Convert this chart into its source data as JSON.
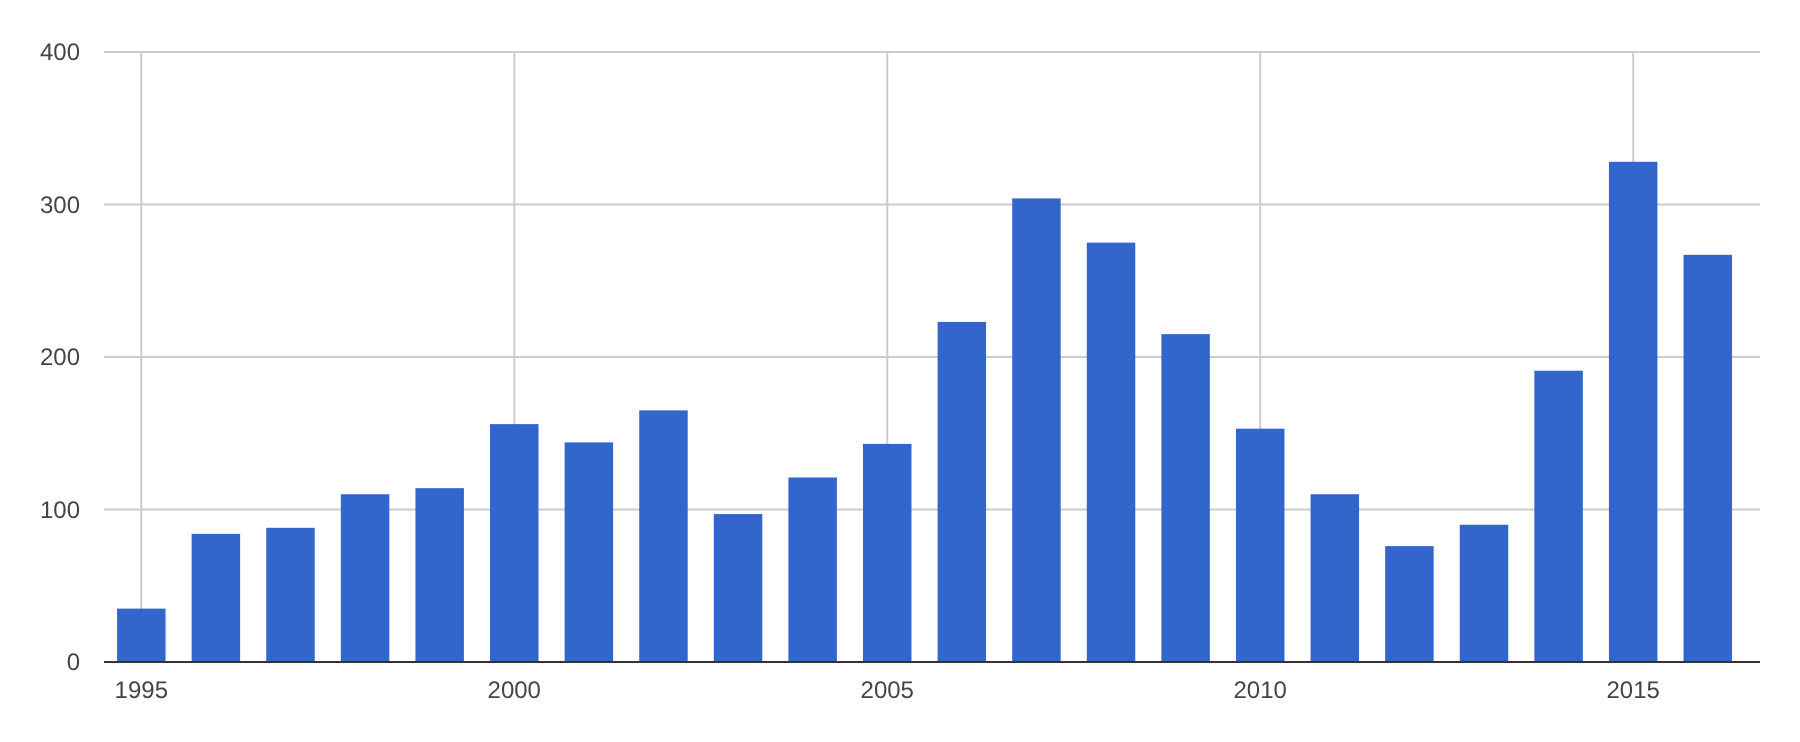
{
  "chart_data": {
    "type": "bar",
    "x": [
      1995,
      1996,
      1997,
      1998,
      1999,
      2000,
      2001,
      2002,
      2003,
      2004,
      2005,
      2006,
      2007,
      2008,
      2009,
      2010,
      2011,
      2012,
      2013,
      2014,
      2015,
      2016
    ],
    "values": [
      35,
      84,
      88,
      110,
      114,
      156,
      144,
      165,
      97,
      121,
      143,
      223,
      304,
      275,
      215,
      153,
      110,
      76,
      90,
      191,
      328,
      267
    ],
    "color": "#3366cc",
    "xlim": [
      1994.5,
      2016.7
    ],
    "xticks": [
      1995,
      2000,
      2005,
      2010,
      2015
    ],
    "ylim": [
      0,
      400
    ],
    "yticks": [
      0,
      100,
      200,
      300,
      400
    ],
    "grid": true
  }
}
